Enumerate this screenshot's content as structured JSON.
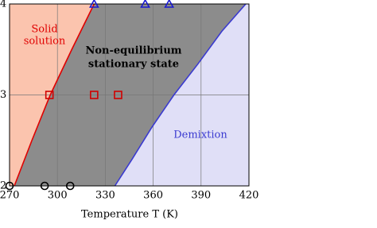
{
  "chart_data": {
    "type": "phase",
    "xlabel": "Temperature T (K)",
    "xlim": [
      270,
      420
    ],
    "xticks": [
      270,
      300,
      330,
      360,
      390,
      420
    ],
    "ylim": [
      2,
      4
    ],
    "yticks": [
      2,
      3,
      4
    ],
    "grid": true,
    "background": "#8c8c8c",
    "boundaries": [
      {
        "color": "#e00000",
        "fill": "#fbc4ae",
        "side": "left",
        "x": [
          273,
          284,
          295.5,
          309,
          323
        ],
        "y": [
          2,
          2.5,
          3,
          3.5,
          4
        ]
      },
      {
        "color": "#3a3ad0",
        "fill": "#e0dff7",
        "side": "right",
        "x": [
          336,
          347,
          359,
          373,
          388,
          403,
          418
        ],
        "y": [
          2,
          2.3,
          2.64,
          3,
          3.34,
          3.7,
          4
        ]
      }
    ],
    "markers": [
      {
        "shape": "triangle",
        "color": "#1a1ad0",
        "x": [
          323,
          355,
          370
        ],
        "y": [
          4,
          4,
          4
        ]
      },
      {
        "shape": "square",
        "color": "#d00000",
        "x": [
          295,
          323,
          338
        ],
        "y": [
          3,
          3,
          3
        ]
      },
      {
        "shape": "circle",
        "color": "#000000",
        "x": [
          270,
          292,
          308
        ],
        "y": [
          2,
          2,
          2
        ]
      }
    ],
    "annotations": [
      {
        "lines": [
          "Solid",
          "solution"
        ],
        "color": "#e00000",
        "bold": false
      },
      {
        "lines": [
          "Non-equilibrium",
          "stationary state"
        ],
        "color": "#000000",
        "bold": true
      },
      {
        "lines": [
          "Demixtion"
        ],
        "color": "#3a3ad0",
        "bold": false
      }
    ]
  }
}
